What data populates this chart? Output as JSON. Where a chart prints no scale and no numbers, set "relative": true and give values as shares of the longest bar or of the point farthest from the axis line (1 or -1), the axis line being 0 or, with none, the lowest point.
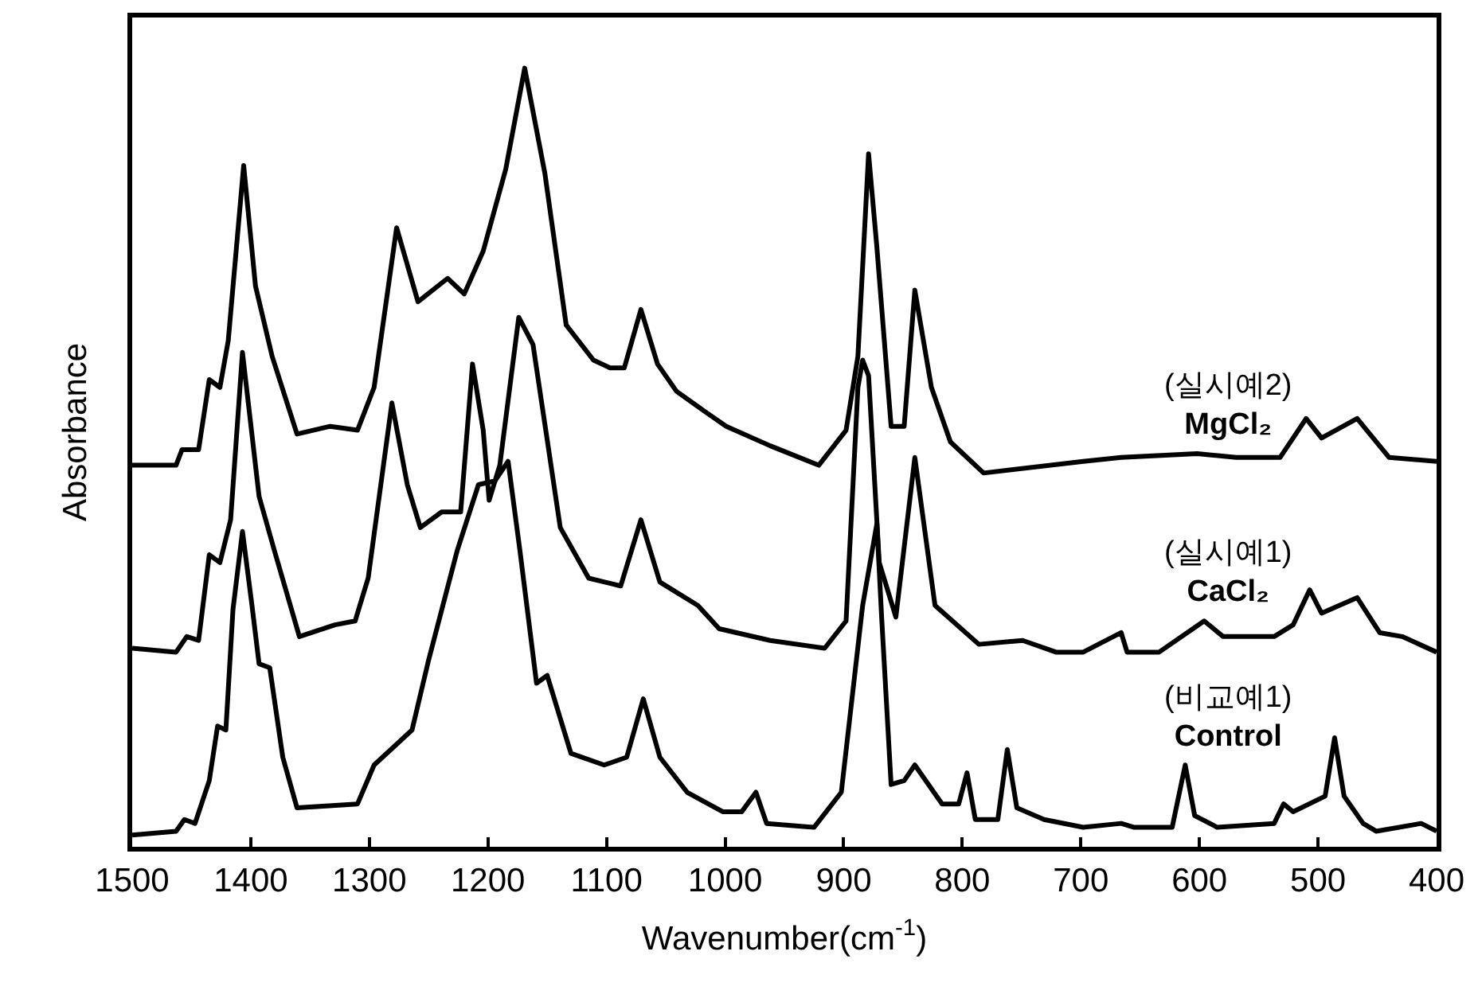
{
  "chart_data": {
    "type": "line",
    "relative": true,
    "xlabel": "Wavenumber(cm$^{-1}$)",
    "ylabel": "Absorbance",
    "xlim": [
      1500,
      400
    ],
    "xticks": [
      1500,
      1400,
      1300,
      1200,
      1100,
      1000,
      900,
      800,
      700,
      600,
      500,
      400
    ],
    "tick_labels": "x",
    "legend": false,
    "marker": "none",
    "line_style": "solid",
    "series": [
      {
        "name": "(실시예2)\nMgCl₂",
        "color": "#000000",
        "x": [
          1500,
          1463,
          1458,
          1444,
          1435,
          1426,
          1419,
          1406,
          1396,
          1382,
          1361,
          1333,
          1310,
          1296,
          1277,
          1259,
          1234,
          1220,
          1204,
          1185,
          1169,
          1152,
          1134,
          1111,
          1097,
          1085,
          1071,
          1057,
          1041,
          1018,
          999,
          962,
          921,
          898,
          888,
          879,
          872,
          860,
          849,
          840,
          826,
          810,
          782,
          698,
          666,
          602,
          569,
          532,
          510,
          497,
          467,
          440,
          400
        ],
        "values": [
          0.49,
          0.49,
          0.51,
          0.51,
          0.6,
          0.59,
          0.65,
          0.875,
          0.72,
          0.63,
          0.53,
          0.54,
          0.535,
          0.59,
          0.795,
          0.7,
          0.73,
          0.71,
          0.765,
          0.87,
          1.0,
          0.865,
          0.67,
          0.625,
          0.615,
          0.615,
          0.69,
          0.62,
          0.585,
          0.56,
          0.54,
          0.515,
          0.49,
          0.535,
          0.63,
          0.89,
          0.77,
          0.54,
          0.54,
          0.715,
          0.59,
          0.52,
          0.48,
          0.495,
          0.5,
          0.505,
          0.5,
          0.5,
          0.55,
          0.525,
          0.55,
          0.5,
          0.495
        ]
      },
      {
        "name": "(실시예1)\nCaCl₂",
        "color": "#000000",
        "x": [
          1500,
          1463,
          1454,
          1444,
          1435,
          1426,
          1417,
          1407,
          1393,
          1380,
          1359,
          1329,
          1312,
          1301,
          1281,
          1268,
          1257,
          1239,
          1223,
          1213,
          1204,
          1199,
          1190,
          1174,
          1162,
          1139,
          1115,
          1088,
          1071,
          1055,
          1023,
          1005,
          962,
          916,
          898,
          888,
          884,
          879,
          870,
          856,
          840,
          823,
          786,
          749,
          721,
          698,
          666,
          661,
          634,
          596,
          580,
          537,
          521,
          507,
          497,
          467,
          448,
          429,
          400
        ],
        "values": [
          0.255,
          0.25,
          0.27,
          0.265,
          0.375,
          0.365,
          0.42,
          0.635,
          0.45,
          0.38,
          0.27,
          0.285,
          0.29,
          0.345,
          0.57,
          0.465,
          0.41,
          0.43,
          0.43,
          0.62,
          0.535,
          0.445,
          0.49,
          0.68,
          0.645,
          0.41,
          0.345,
          0.335,
          0.42,
          0.34,
          0.31,
          0.28,
          0.265,
          0.255,
          0.29,
          0.59,
          0.625,
          0.605,
          0.365,
          0.295,
          0.5,
          0.31,
          0.26,
          0.265,
          0.25,
          0.25,
          0.275,
          0.25,
          0.25,
          0.29,
          0.27,
          0.27,
          0.285,
          0.33,
          0.3,
          0.32,
          0.275,
          0.27,
          0.25
        ]
      },
      {
        "name": "(비교예1)\nControl",
        "color": "#000000",
        "x": [
          1500,
          1463,
          1456,
          1447,
          1435,
          1428,
          1421,
          1415,
          1407,
          1399,
          1393,
          1384,
          1373,
          1361,
          1310,
          1296,
          1264,
          1250,
          1226,
          1208,
          1194,
          1183,
          1173,
          1159,
          1150,
          1130,
          1102,
          1083,
          1069,
          1055,
          1032,
          1002,
          986,
          974,
          965,
          925,
          902,
          884,
          872,
          868,
          860,
          849,
          840,
          817,
          803,
          796,
          789,
          770,
          762,
          754,
          731,
          698,
          666,
          655,
          623,
          612,
          604,
          585,
          537,
          529,
          521,
          494,
          486,
          478,
          462,
          451,
          413,
          400
        ],
        "values": [
          0.015,
          0.02,
          0.035,
          0.03,
          0.085,
          0.155,
          0.15,
          0.305,
          0.405,
          0.31,
          0.235,
          0.23,
          0.115,
          0.05,
          0.055,
          0.105,
          0.15,
          0.24,
          0.38,
          0.465,
          0.47,
          0.495,
          0.38,
          0.21,
          0.22,
          0.12,
          0.105,
          0.115,
          0.19,
          0.115,
          0.07,
          0.045,
          0.045,
          0.07,
          0.03,
          0.025,
          0.07,
          0.31,
          0.415,
          0.295,
          0.08,
          0.085,
          0.105,
          0.055,
          0.055,
          0.095,
          0.035,
          0.035,
          0.125,
          0.05,
          0.035,
          0.025,
          0.03,
          0.025,
          0.025,
          0.105,
          0.04,
          0.025,
          0.03,
          0.055,
          0.045,
          0.065,
          0.14,
          0.065,
          0.03,
          0.02,
          0.03,
          0.02
        ]
      }
    ]
  }
}
